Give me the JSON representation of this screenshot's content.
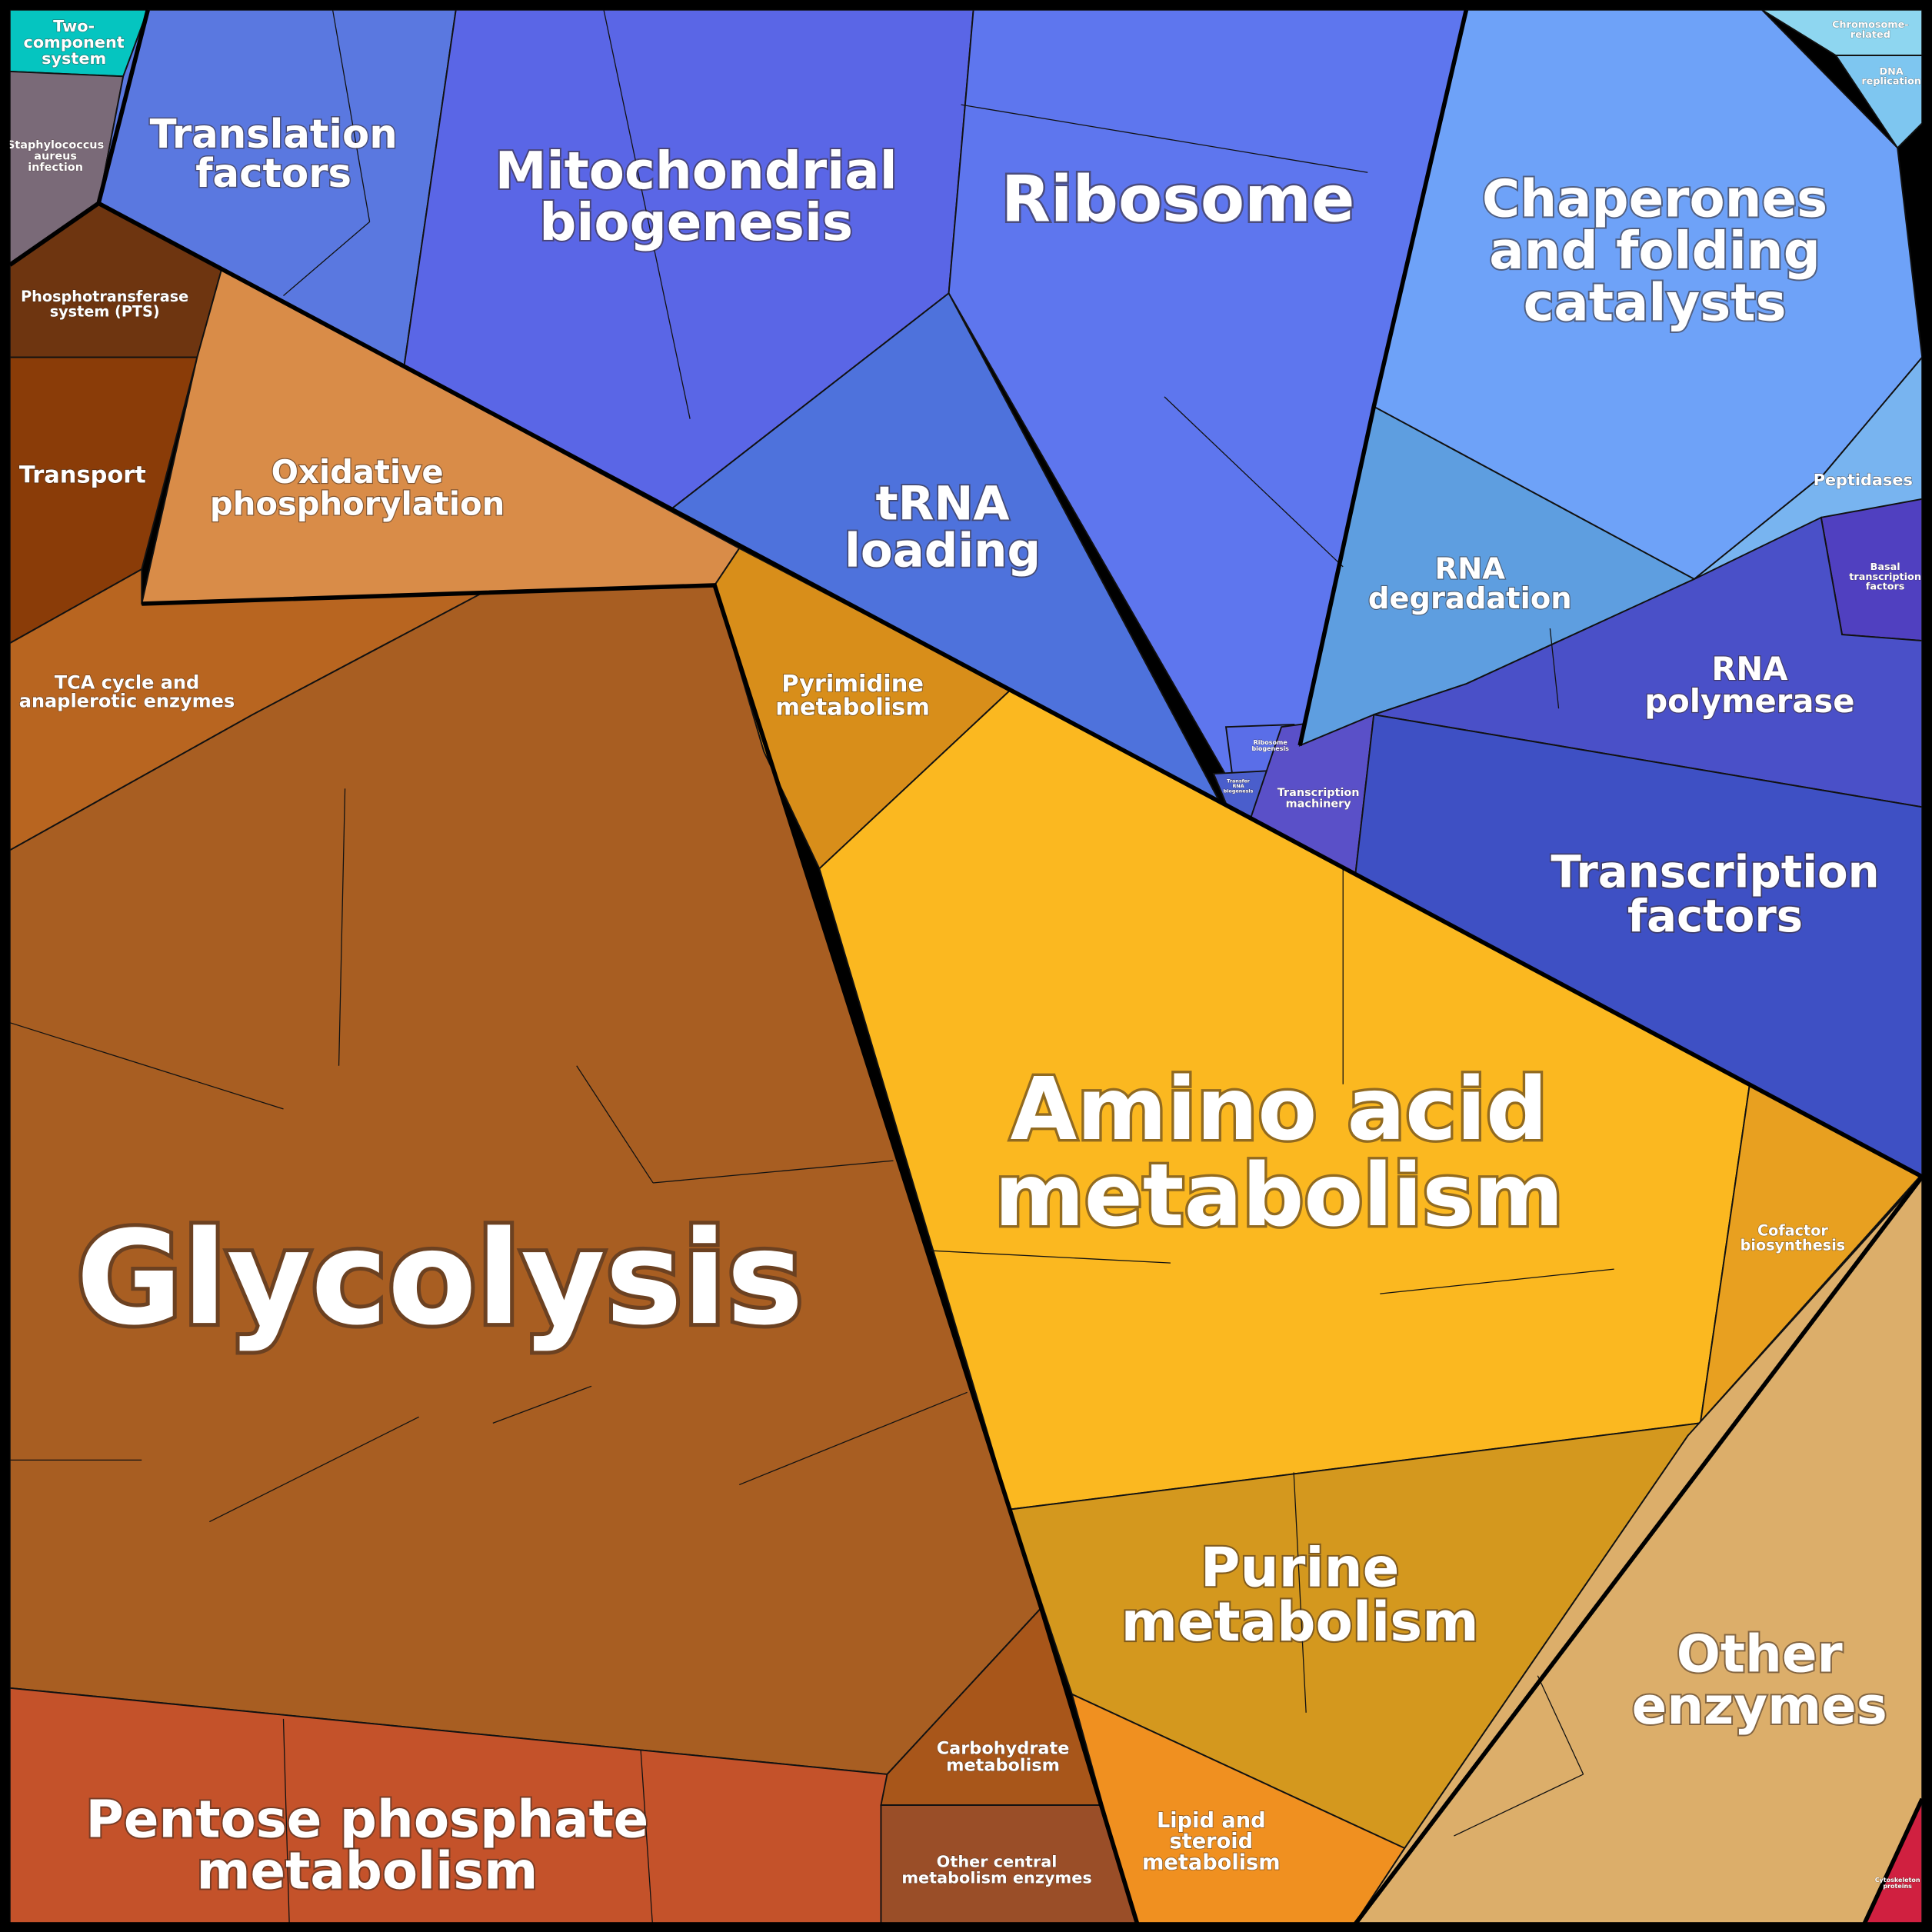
{
  "regions": [
    {
      "label": [
        "Two-",
        "component",
        "system"
      ]
    },
    {
      "label": [
        "Staphylococcus",
        "aureus",
        "infection"
      ]
    },
    {
      "label": [
        "Phosphotransferase",
        "system (PTS)"
      ]
    },
    {
      "label": [
        "Transport"
      ]
    },
    {
      "label": [
        "Oxidative",
        "phosphorylation"
      ]
    },
    {
      "label": [
        "TCA cycle and",
        "anaplerotic enzymes"
      ]
    },
    {
      "label": [
        "Glycolysis"
      ]
    },
    {
      "label": [
        "Pentose phosphate",
        "metabolism"
      ]
    },
    {
      "label": [
        "Carbohydrate",
        "metabolism"
      ]
    },
    {
      "label": [
        "Other central",
        "metabolism enzymes"
      ]
    },
    {
      "label": [
        "Pyrimidine",
        "metabolism"
      ]
    },
    {
      "label": [
        "Amino acid",
        "metabolism"
      ]
    },
    {
      "label": [
        "Cofactor",
        "biosynthesis"
      ]
    },
    {
      "label": [
        "Purine",
        "metabolism"
      ]
    },
    {
      "label": [
        "Lipid and",
        "steroid",
        "metabolism"
      ]
    },
    {
      "label": [
        "Other",
        "enzymes"
      ]
    },
    {
      "label": [
        "Cytoskeleton",
        "proteins"
      ]
    },
    {
      "label": [
        "Translation",
        "factors"
      ]
    },
    {
      "label": [
        "Mitochondrial",
        "biogenesis"
      ]
    },
    {
      "label": [
        "Ribosome"
      ]
    },
    {
      "label": [
        "tRNA",
        "loading"
      ]
    },
    {
      "label": [
        "Ribosome",
        "biogenesis"
      ]
    },
    {
      "label": [
        "Transfer",
        "RNA",
        "biogenesis"
      ]
    },
    {
      "label": [
        "Transcription",
        "machinery"
      ]
    },
    {
      "label": [
        "Chaperones",
        "and folding",
        "catalysts"
      ]
    },
    {
      "label": [
        "RNA",
        "degradation"
      ]
    },
    {
      "label": [
        "Peptidases"
      ]
    },
    {
      "label": [
        "Chromosome-",
        "related"
      ]
    },
    {
      "label": [
        "DNA",
        "replication"
      ]
    },
    {
      "label": [
        "Basal",
        "transcription",
        "factors"
      ]
    },
    {
      "label": [
        "RNA",
        "polymerase"
      ]
    },
    {
      "label": [
        "Transcription",
        "factors"
      ]
    }
  ]
}
